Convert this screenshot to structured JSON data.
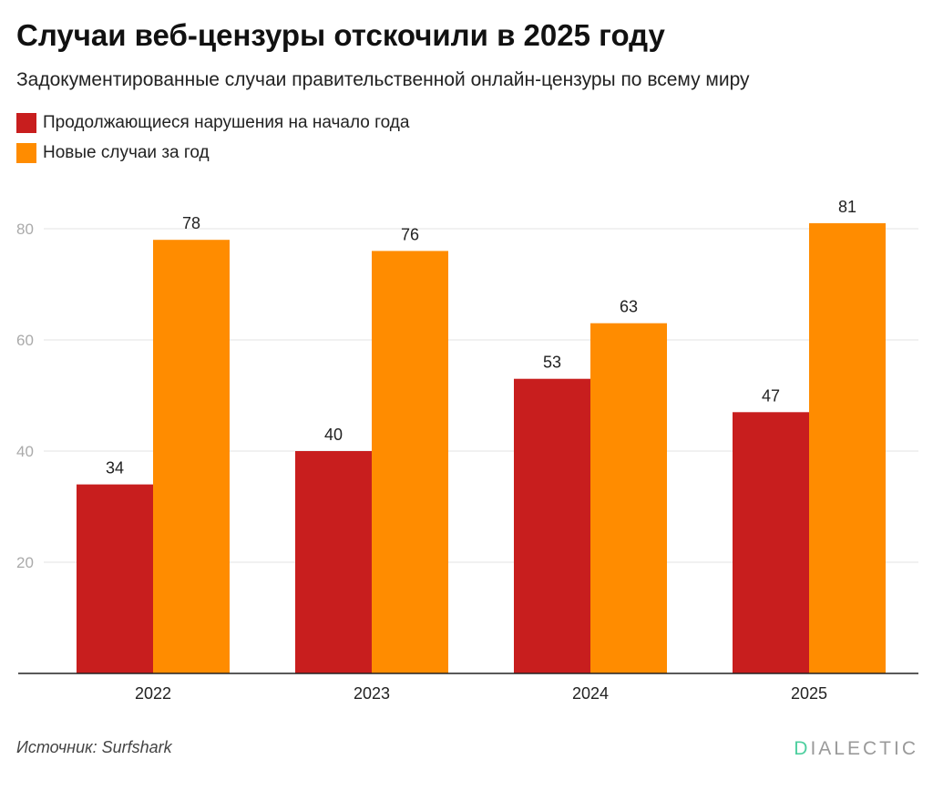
{
  "title": "Случаи веб-цензуры отскочили в 2025 году",
  "subtitle": "Задокументированные случаи правительственной онлайн-цензуры по всему миру",
  "source": "Источник: Surfshark",
  "logo": "DIALECTIC",
  "chart_data": {
    "type": "bar",
    "categories": [
      "2022",
      "2023",
      "2024",
      "2025"
    ],
    "series": [
      {
        "name": "Продолжающиеся нарушения на начало года",
        "values": [
          34,
          40,
          53,
          47
        ],
        "color": "#c81e1e"
      },
      {
        "name": "Новые случаи за год",
        "values": [
          78,
          76,
          63,
          81
        ],
        "color": "#ff8c00"
      }
    ],
    "ylim": [
      0,
      80
    ],
    "yticks": [
      20,
      40,
      60,
      80
    ],
    "grid": true,
    "legend_position": "top-left",
    "data_labels": true
  }
}
